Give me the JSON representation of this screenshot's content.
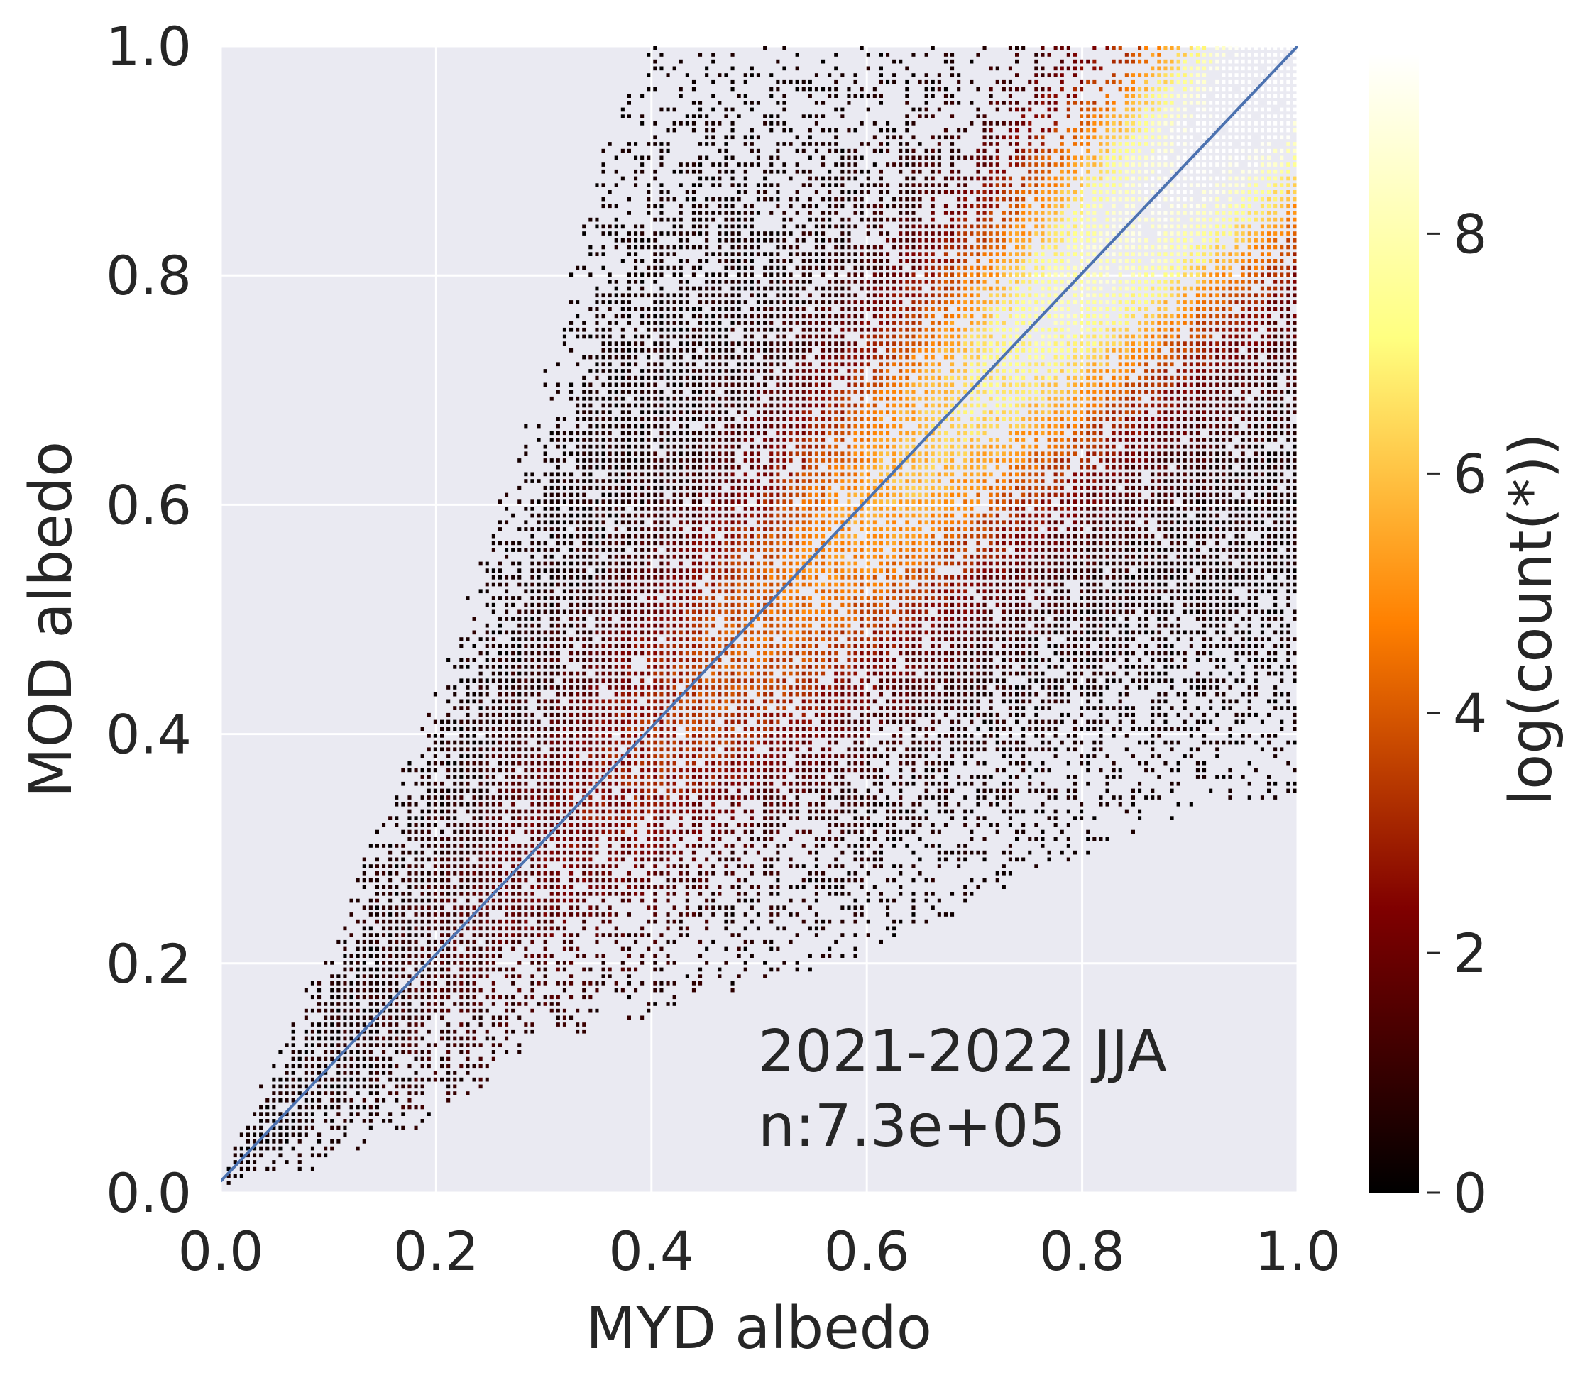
{
  "chart_data": {
    "type": "heatmap",
    "subtype": "2d-density-histogram-log-count",
    "xlabel": "MYD albedo",
    "ylabel": "MOD albedo",
    "xlim": [
      0.0,
      1.0
    ],
    "ylim": [
      0.0,
      1.0
    ],
    "x_ticks": [
      "0.0",
      "0.2",
      "0.4",
      "0.6",
      "0.8",
      "1.0"
    ],
    "y_ticks": [
      "0.0",
      "0.2",
      "0.4",
      "0.6",
      "0.8",
      "1.0"
    ],
    "grid": true,
    "background_color": "#eaeaf2",
    "bin_width": 0.006,
    "reference_line": {
      "label": "1:1 line",
      "x": [
        0.0,
        1.0
      ],
      "y": [
        0.01,
        1.0
      ],
      "color": "#4c72b0"
    },
    "annotations": {
      "period": "2021-2022 JJA",
      "count": "n:7.3e+05"
    },
    "colorbar": {
      "label": "log(count(*))",
      "colormap": "afmhot",
      "range": [
        0,
        9.5
      ],
      "ticks": [
        "0",
        "2",
        "4",
        "6",
        "8"
      ]
    },
    "density_model": {
      "description": "log-count peaks along the 1:1 line, highest near (0.85, 0.85); populated region bounded by lower and upper envelopes",
      "peak_log_count_at_high_albedo": 9.2,
      "upper_envelope": [
        [
          0.0,
          0.02
        ],
        [
          0.1,
          0.22
        ],
        [
          0.2,
          0.44
        ],
        [
          0.3,
          0.72
        ],
        [
          0.36,
          0.93
        ],
        [
          0.4,
          1.0
        ],
        [
          1.0,
          1.0
        ]
      ],
      "lower_envelope": [
        [
          0.0,
          0.0
        ],
        [
          0.1,
          0.02
        ],
        [
          0.2,
          0.06
        ],
        [
          0.3,
          0.13
        ],
        [
          0.4,
          0.15
        ],
        [
          0.5,
          0.18
        ],
        [
          0.6,
          0.2
        ],
        [
          0.7,
          0.25
        ],
        [
          0.8,
          0.29
        ],
        [
          0.9,
          0.33
        ],
        [
          1.0,
          0.34
        ]
      ]
    }
  }
}
